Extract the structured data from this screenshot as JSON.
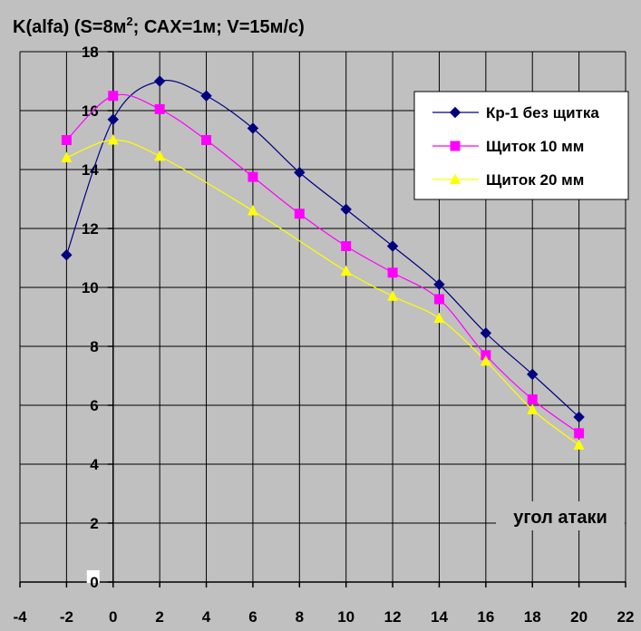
{
  "chart_data": {
    "type": "line",
    "title_prefix": "K(alfa)  (S=8м",
    "title_sup": "2",
    "title_suffix": "; САХ=1м;  V=15м/с)",
    "xlabel": "угол атаки",
    "ylabel": "",
    "xlim": [
      -4,
      22
    ],
    "ylim": [
      0,
      18
    ],
    "xticks": [
      -4,
      -2,
      0,
      2,
      4,
      6,
      8,
      10,
      12,
      14,
      16,
      18,
      20,
      22
    ],
    "yticks": [
      0,
      2,
      4,
      6,
      8,
      10,
      12,
      14,
      16,
      18
    ],
    "grid": true,
    "legend_position": "top-right",
    "series": [
      {
        "name": "Кр-1 без щитка",
        "color": "#000080",
        "marker": "diamond",
        "x": [
          -2,
          0,
          2,
          4,
          6,
          8,
          10,
          12,
          14,
          16,
          18,
          20
        ],
        "y": [
          11.1,
          15.7,
          17.0,
          16.5,
          15.4,
          13.9,
          12.65,
          11.4,
          10.1,
          8.45,
          7.05,
          5.6
        ]
      },
      {
        "name": "Щиток 10 мм",
        "color": "#ff00ff",
        "marker": "square",
        "x": [
          -2,
          0,
          2,
          4,
          6,
          8,
          10,
          12,
          14,
          16,
          18,
          20
        ],
        "y": [
          15.0,
          16.5,
          16.05,
          15.0,
          13.75,
          12.5,
          11.4,
          10.5,
          9.6,
          7.7,
          6.2,
          5.05
        ]
      },
      {
        "name": "Щиток 20 мм",
        "color": "#ffff00",
        "marker": "triangle",
        "x": [
          -2,
          0,
          2,
          6,
          10,
          12,
          14,
          16,
          18,
          20
        ],
        "y": [
          14.4,
          15.0,
          14.45,
          12.6,
          10.55,
          9.7,
          8.95,
          7.5,
          5.85,
          4.65
        ]
      }
    ]
  }
}
